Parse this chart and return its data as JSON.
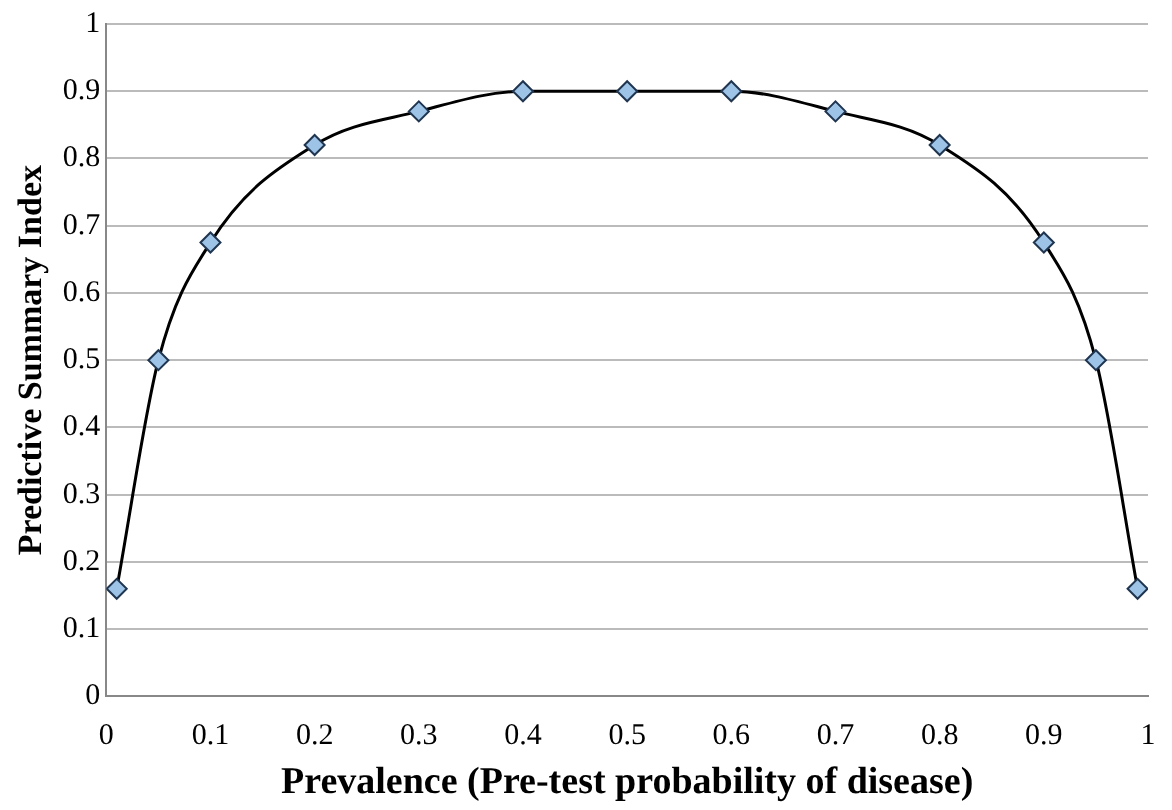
{
  "chart_data": {
    "type": "line",
    "xlabel": "Prevalence (Pre-test probability of disease)",
    "ylabel": "Predictive Summary Index",
    "x": [
      0.01,
      0.05,
      0.1,
      0.2,
      0.3,
      0.4,
      0.5,
      0.6,
      0.7,
      0.8,
      0.9,
      0.95,
      0.99
    ],
    "series": [
      {
        "color": "#9dc3e6",
        "values": [
          0.16,
          0.5,
          0.675,
          0.82,
          0.87,
          0.9,
          0.9,
          0.9,
          0.87,
          0.82,
          0.675,
          0.5,
          0.16
        ]
      }
    ],
    "xlim": [
      0,
      1
    ],
    "xticks": [
      0,
      0.1,
      0.2,
      0.3,
      0.4,
      0.5,
      0.6,
      0.7,
      0.8,
      0.9,
      1
    ],
    "ylim": [
      0,
      1
    ],
    "yticks": [
      0,
      0.1,
      0.2,
      0.3,
      0.4,
      0.5,
      0.6,
      0.7,
      0.8,
      0.9,
      1
    ],
    "grid": "y",
    "legend": false,
    "marker": "diamond",
    "line_style": "solid"
  }
}
